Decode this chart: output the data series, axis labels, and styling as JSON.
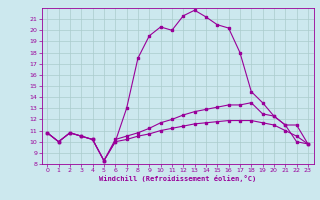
{
  "xlabel": "Windchill (Refroidissement éolien,°C)",
  "bg_color": "#cce8ee",
  "line_color": "#990099",
  "grid_color": "#aacccc",
  "xlim": [
    -0.5,
    23.5
  ],
  "ylim": [
    8,
    22
  ],
  "yticks": [
    8,
    9,
    10,
    11,
    12,
    13,
    14,
    15,
    16,
    17,
    18,
    19,
    20,
    21
  ],
  "xticks": [
    0,
    1,
    2,
    3,
    4,
    5,
    6,
    7,
    8,
    9,
    10,
    11,
    12,
    13,
    14,
    15,
    16,
    17,
    18,
    19,
    20,
    21,
    22,
    23
  ],
  "line1_x": [
    0,
    1,
    2,
    3,
    4,
    5,
    6,
    7,
    8,
    9,
    10,
    11,
    12,
    13,
    14,
    15,
    16,
    17,
    18,
    19,
    20,
    21,
    22,
    23
  ],
  "line1_y": [
    10.8,
    10.0,
    10.8,
    10.5,
    10.2,
    8.3,
    10.0,
    13.0,
    17.5,
    19.5,
    20.3,
    20.0,
    21.3,
    21.8,
    21.2,
    20.5,
    20.2,
    18.0,
    14.5,
    13.5,
    12.3,
    11.5,
    11.5,
    9.8
  ],
  "line2_x": [
    0,
    1,
    2,
    3,
    4,
    5,
    6,
    7,
    8,
    9,
    10,
    11,
    12,
    13,
    14,
    15,
    16,
    17,
    18,
    19,
    20,
    21,
    22,
    23
  ],
  "line2_y": [
    10.8,
    10.0,
    10.8,
    10.5,
    10.2,
    8.3,
    10.2,
    10.5,
    10.8,
    11.2,
    11.7,
    12.0,
    12.4,
    12.7,
    12.9,
    13.1,
    13.3,
    13.3,
    13.5,
    12.5,
    12.3,
    11.5,
    10.0,
    9.8
  ],
  "line3_x": [
    0,
    1,
    2,
    3,
    4,
    5,
    6,
    7,
    8,
    9,
    10,
    11,
    12,
    13,
    14,
    15,
    16,
    17,
    18,
    19,
    20,
    21,
    22,
    23
  ],
  "line3_y": [
    10.8,
    10.0,
    10.8,
    10.5,
    10.2,
    8.3,
    10.0,
    10.2,
    10.5,
    10.7,
    11.0,
    11.2,
    11.4,
    11.6,
    11.7,
    11.8,
    11.9,
    11.9,
    11.9,
    11.7,
    11.5,
    11.0,
    10.5,
    9.8
  ]
}
